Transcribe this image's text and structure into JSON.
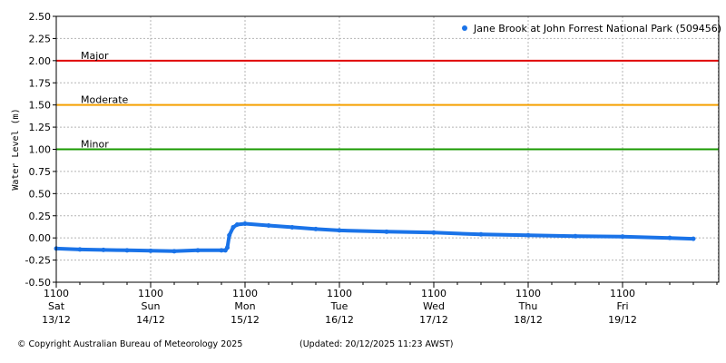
{
  "chart_data": {
    "type": "line",
    "title": "",
    "ylabel": "Water Level (m)",
    "ylim": [
      -0.5,
      2.5
    ],
    "yticks": [
      "2.50",
      "2.25",
      "2.00",
      "1.75",
      "1.50",
      "1.25",
      "1.00",
      "0.75",
      "0.50",
      "0.25",
      "0.00",
      "-0.25",
      "-0.50"
    ],
    "grid": true,
    "legend_position": "top-right",
    "series": [
      {
        "name": "Jane Brook at John Forrest National Park (509456)",
        "color": "#1a73e8",
        "x_hours": [
          0,
          6,
          12,
          18,
          24,
          30,
          36,
          42,
          43,
          43.5,
          44,
          45,
          46,
          48,
          54,
          60,
          66,
          72,
          84,
          96,
          108,
          120,
          132,
          144,
          156,
          162
        ],
        "values": [
          -0.12,
          -0.13,
          -0.135,
          -0.14,
          -0.145,
          -0.15,
          -0.14,
          -0.14,
          -0.14,
          -0.11,
          0.03,
          0.12,
          0.15,
          0.16,
          0.14,
          0.12,
          0.1,
          0.085,
          0.07,
          0.06,
          0.04,
          0.03,
          0.02,
          0.015,
          0.0,
          -0.01
        ]
      }
    ],
    "reference_lines": [
      {
        "label": "Major",
        "value": 2.0,
        "color": "#e00000"
      },
      {
        "label": "Moderate",
        "value": 1.5,
        "color": "#f5a000"
      },
      {
        "label": "Minor",
        "value": 1.0,
        "color": "#1a9a00"
      }
    ],
    "x_ticks": [
      {
        "time": "1100",
        "day": "Sat",
        "date": "13/12"
      },
      {
        "time": "1100",
        "day": "Sun",
        "date": "14/12"
      },
      {
        "time": "1100",
        "day": "Mon",
        "date": "15/12"
      },
      {
        "time": "1100",
        "day": "Tue",
        "date": "16/12"
      },
      {
        "time": "1100",
        "day": "Wed",
        "date": "17/12"
      },
      {
        "time": "1100",
        "day": "Thu",
        "date": "18/12"
      },
      {
        "time": "1100",
        "day": "Fri",
        "date": "19/12"
      }
    ]
  },
  "footer": {
    "copyright": "© Copyright Australian Bureau of Meteorology 2025",
    "updated": "(Updated: 20/12/2025 11:23 AWST)"
  }
}
